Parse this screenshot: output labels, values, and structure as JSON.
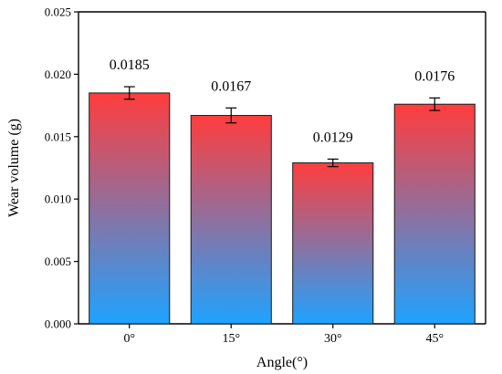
{
  "chart_data": {
    "type": "bar",
    "title": "",
    "xlabel": "Angle(°)",
    "ylabel": "Wear volume (g)",
    "categories": [
      "0°",
      "15°",
      "30°",
      "45°"
    ],
    "values": [
      0.0185,
      0.0167,
      0.0129,
      0.0176
    ],
    "errors": [
      0.0005,
      0.0006,
      0.0003,
      0.0005
    ],
    "value_labels": [
      "0.0185",
      "0.0167",
      "0.0129",
      "0.0176"
    ],
    "ylim": [
      0,
      0.025
    ],
    "yticks": [
      0.0,
      0.005,
      0.01,
      0.015,
      0.02,
      0.025
    ],
    "ytick_labels": [
      "0.000",
      "0.005",
      "0.010",
      "0.015",
      "0.020",
      "0.025"
    ],
    "bar_gradient": {
      "top": "#ff3d3d",
      "bottom": "#1ea3ff"
    },
    "grid": false,
    "legend": "none"
  }
}
